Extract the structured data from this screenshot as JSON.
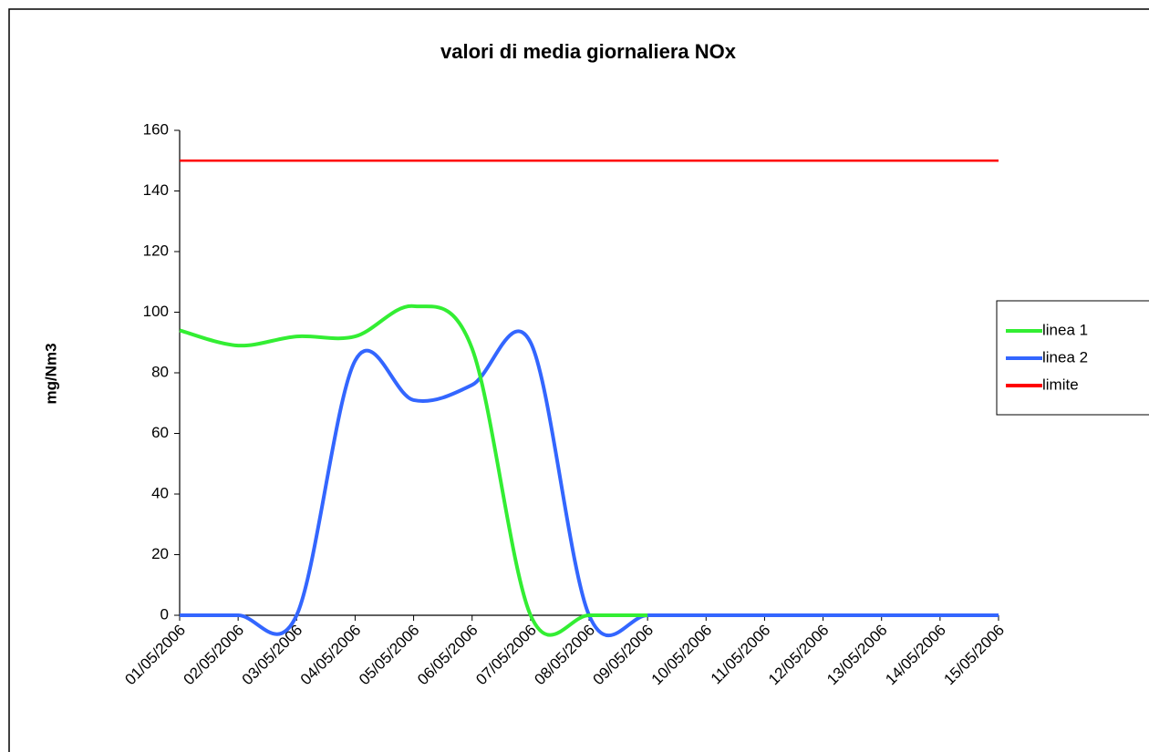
{
  "chart_data": {
    "type": "line",
    "title": "valori di media giornaliera  NOx",
    "y_label": "mg/Nm3",
    "categories": [
      "01/05/2006",
      "02/05/2006",
      "03/05/2006",
      "04/05/2006",
      "05/05/2006",
      "06/05/2006",
      "07/05/2006",
      "08/05/2006",
      "09/05/2006",
      "10/05/2006",
      "11/05/2006",
      "12/05/2006",
      "13/05/2006",
      "14/05/2006",
      "15/05/2006"
    ],
    "series": [
      {
        "name": "linea 1",
        "color": "#33ee33",
        "values": [
          94,
          89,
          92,
          92,
          102,
          88,
          0,
          0,
          0,
          null,
          null,
          null,
          null,
          null,
          null
        ]
      },
      {
        "name": "linea 2",
        "color": "#3366ff",
        "values": [
          0,
          0,
          0,
          84,
          71,
          76,
          90,
          0,
          0,
          0,
          0,
          0,
          0,
          0,
          0
        ]
      },
      {
        "name": "limite",
        "color": "#ff0000",
        "values": [
          150,
          150,
          150,
          150,
          150,
          150,
          150,
          150,
          150,
          150,
          150,
          150,
          150,
          150,
          150
        ]
      }
    ],
    "ylim": [
      0,
      160
    ],
    "yticks": [
      0,
      20,
      40,
      60,
      80,
      100,
      120,
      140,
      160
    ],
    "smooth": true,
    "legend": "right"
  }
}
